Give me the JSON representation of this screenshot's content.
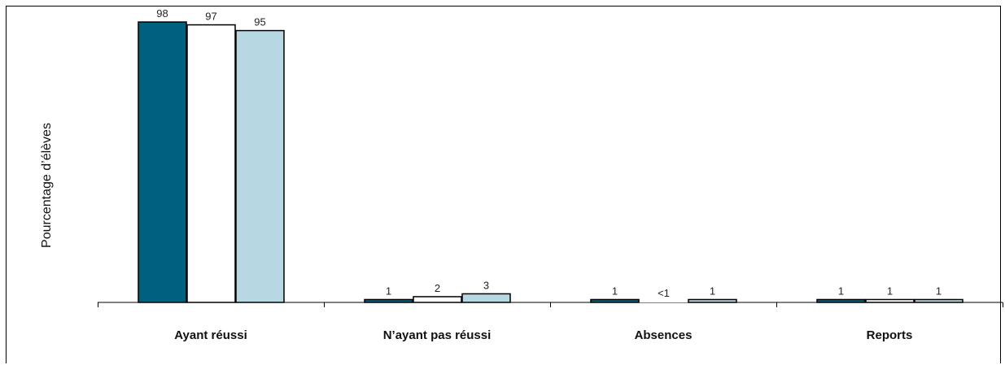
{
  "chart_data": {
    "type": "bar",
    "ylabel": "Pourcentage d’élèves",
    "categories": [
      "Ayant réussi",
      "N’ayant pas réussi",
      "Absences",
      "Reports"
    ],
    "series": [
      {
        "values": [
          98,
          1,
          1,
          1
        ],
        "labels": [
          "98",
          "1",
          "1",
          "1"
        ],
        "color": "#00617f"
      },
      {
        "values": [
          97,
          2,
          0.3,
          1
        ],
        "labels": [
          "97",
          "2",
          "<1",
          "1"
        ],
        "color": "#ffffff"
      },
      {
        "values": [
          95,
          3,
          1,
          1
        ],
        "labels": [
          "95",
          "3",
          "1",
          "1"
        ],
        "color": "#b7d7e2"
      }
    ],
    "ylim": [
      0,
      100
    ],
    "grid": false,
    "legend": "none"
  }
}
